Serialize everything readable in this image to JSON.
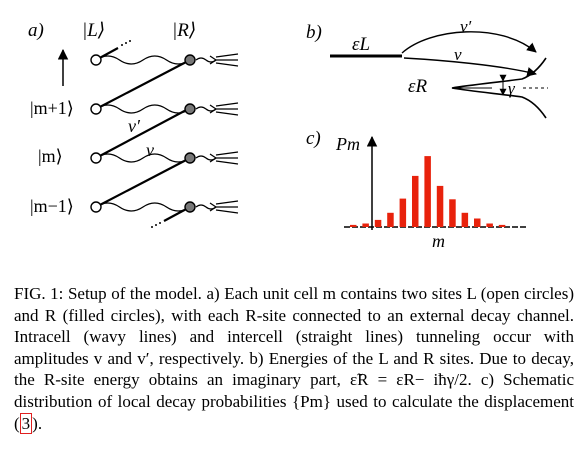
{
  "panel_a": {
    "label": "a)",
    "site_L": "|L⟩",
    "site_R": "|R⟩",
    "row_top": "|m+1⟩",
    "row_mid": "|m⟩",
    "row_bottom": "|m−1⟩",
    "intercell_amp": "v′",
    "intracell_amp": "v"
  },
  "panel_b": {
    "label": "b)",
    "eps_L": "εL",
    "eps_R": "εR",
    "intercell_amp": "v′",
    "intracell_amp": "v",
    "gamma": "γ"
  },
  "panel_c": {
    "label": "c)",
    "ylabel": "Pm",
    "xlabel": "m",
    "bar_color": "#e8220c",
    "chart_data": {
      "type": "bar",
      "values": [
        0.03,
        0.05,
        0.1,
        0.2,
        0.4,
        0.72,
        1.0,
        0.58,
        0.39,
        0.2,
        0.12,
        0.05,
        0.03
      ],
      "ylim": [
        0,
        1.1
      ]
    }
  },
  "caption": {
    "label": "FIG. 1:",
    "text_1": "Setup of the model. a) Each unit cell m contains two sites L (open circles) and R (filled circles), with each R-site connected to an external decay channel. Intracell (wavy lines) and intercell (straight lines) tunneling occur with amplitudes v and v′, respectively. b) Energies of the L and R sites. Due to decay, the R-site energy obtains an imaginary part, ε̃R = εR− iħγ/2. c) Schematic distribution of local decay probabilities {Pm} used to calculate the displacement (",
    "ref": "3",
    "text_2": ")."
  }
}
